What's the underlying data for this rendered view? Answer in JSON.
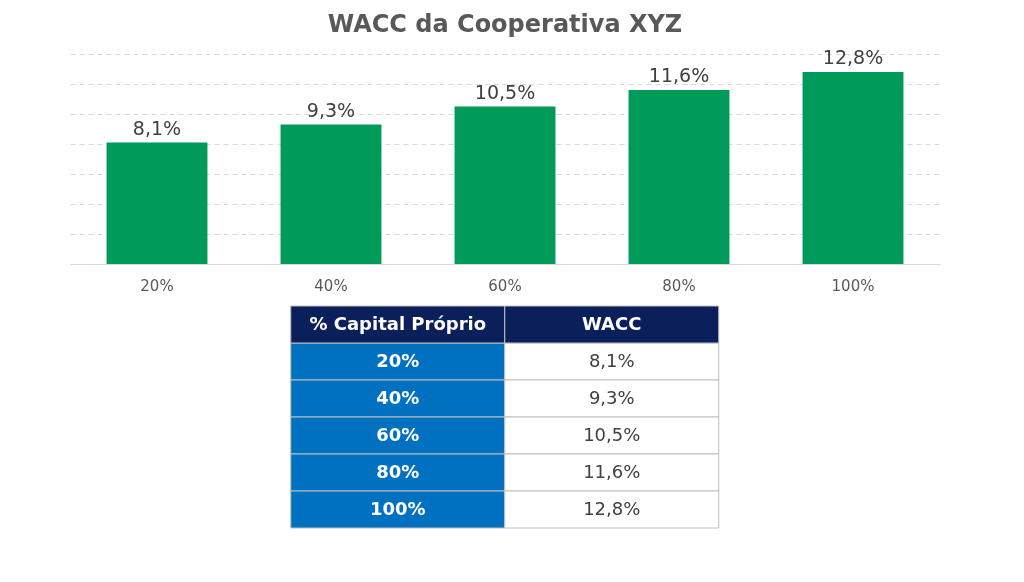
{
  "chart_data": {
    "type": "bar",
    "title": "WACC da Cooperativa XYZ",
    "categories": [
      "20%",
      "40%",
      "60%",
      "80%",
      "100%"
    ],
    "values": [
      8.1,
      9.3,
      10.5,
      11.6,
      12.8
    ],
    "value_labels": [
      "8,1%",
      "9,3%",
      "10,5%",
      "11,6%",
      "12,8%"
    ],
    "color": "#009a5b",
    "ylim": [
      0,
      14
    ],
    "tick_labels": "x",
    "grid": "y",
    "annotations": [
      "% Capital Próprio",
      "WACC"
    ]
  }
}
